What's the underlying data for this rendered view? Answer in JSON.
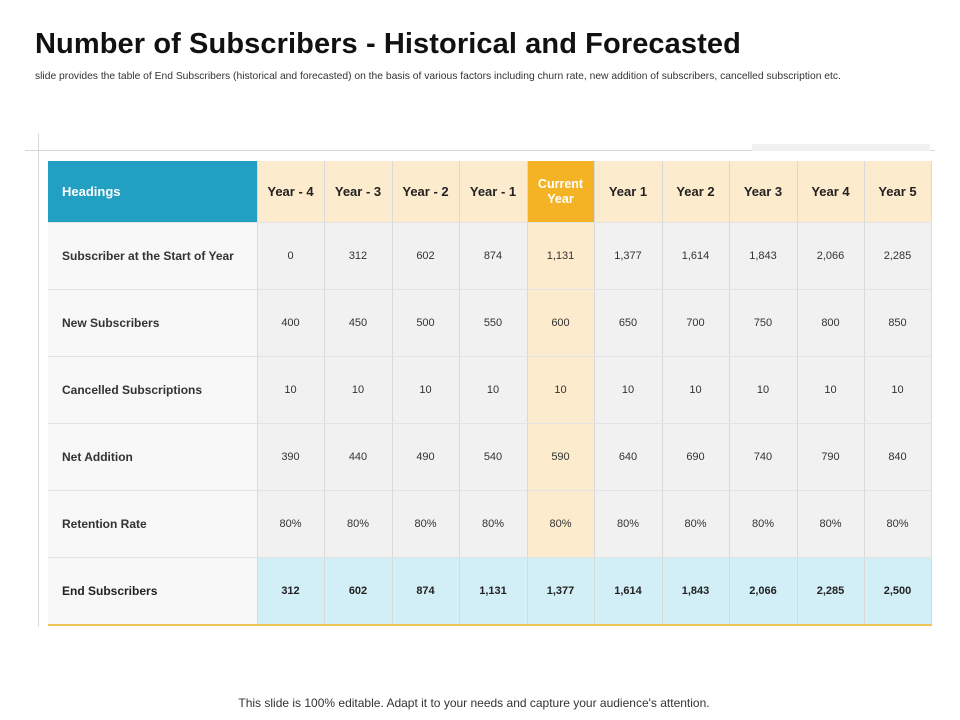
{
  "title": "Number of Subscribers - Historical and Forecasted",
  "subtitle": "slide provides the table of End Subscribers (historical and forecasted) on the basis of various factors including churn rate, new addition of subscribers, cancelled subscription etc.",
  "table": {
    "corner_label": "Headings",
    "columns": [
      "Year - 4",
      "Year - 3",
      "Year - 2",
      "Year - 1",
      "Current Year",
      "Year 1",
      "Year 2",
      "Year 3",
      "Year 4",
      "Year 5"
    ],
    "rows": [
      {
        "label": "Subscriber at the Start of Year",
        "values": [
          "0",
          "312",
          "602",
          "874",
          "1,131",
          "1,377",
          "1,614",
          "1,843",
          "2,066",
          "2,285"
        ]
      },
      {
        "label": "New Subscribers",
        "values": [
          "400",
          "450",
          "500",
          "550",
          "600",
          "650",
          "700",
          "750",
          "800",
          "850"
        ]
      },
      {
        "label": "Cancelled Subscriptions",
        "values": [
          "10",
          "10",
          "10",
          "10",
          "10",
          "10",
          "10",
          "10",
          "10",
          "10"
        ]
      },
      {
        "label": "Net Addition",
        "values": [
          "390",
          "440",
          "490",
          "540",
          "590",
          "640",
          "690",
          "740",
          "790",
          "840"
        ]
      },
      {
        "label": "Retention Rate",
        "values": [
          "80%",
          "80%",
          "80%",
          "80%",
          "80%",
          "80%",
          "80%",
          "80%",
          "80%",
          "80%"
        ]
      },
      {
        "label": "End Subscribers",
        "values": [
          "312",
          "602",
          "874",
          "1,131",
          "1,377",
          "1,614",
          "1,843",
          "2,066",
          "2,285",
          "2,500"
        ]
      }
    ]
  },
  "footer": "This slide is 100% editable. Adapt it to your needs and capture your audience's attention.",
  "colors": {
    "header_blue": "#22a0c4",
    "current_year_orange": "#f4b324",
    "header_cream": "#fdebcd",
    "end_row_blue": "#d2eef6"
  }
}
